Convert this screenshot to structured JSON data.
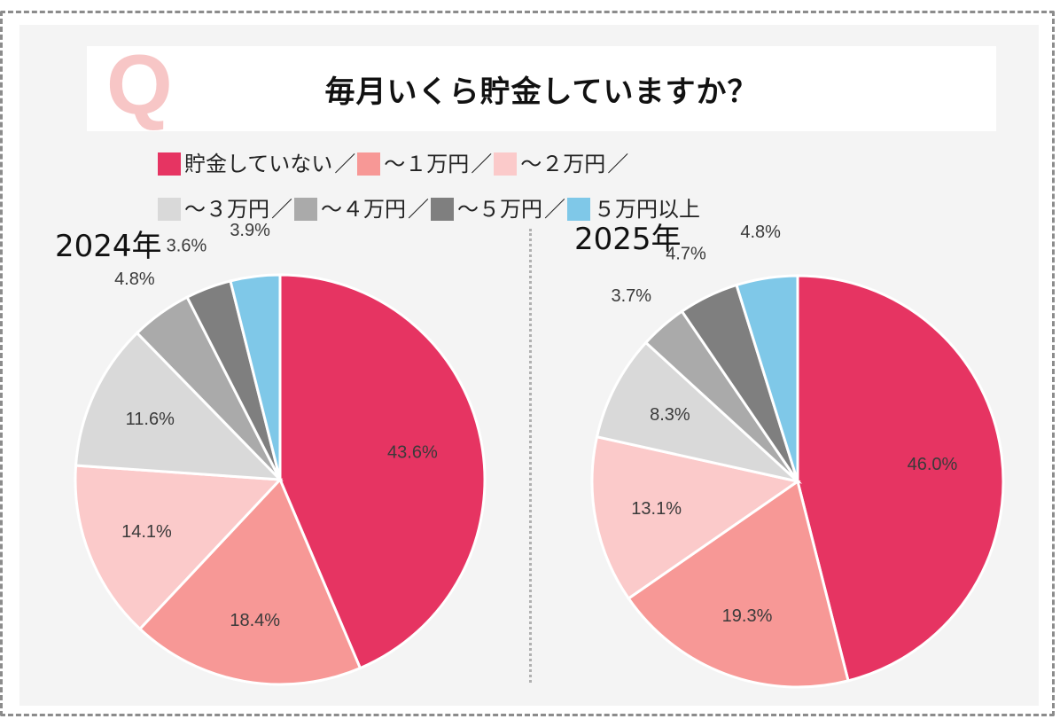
{
  "question_mark": "Q",
  "title": "毎月いくら貯金していますか？",
  "legend": {
    "separator": "／",
    "items": [
      {
        "label": "貯金していない",
        "color": "#e63462"
      },
      {
        "label": "～１万円",
        "color": "#f79896"
      },
      {
        "label": "～２万円",
        "color": "#fbcaca"
      },
      {
        "label": "～３万円",
        "color": "#d9d9d9"
      },
      {
        "label": "～４万円",
        "color": "#aaaaaa"
      },
      {
        "label": "～５万円",
        "color": "#7f7f7f"
      },
      {
        "label": "５万円以上",
        "color": "#7fc8e8"
      }
    ]
  },
  "chart_data": [
    {
      "type": "pie",
      "title": "2024年",
      "categories": [
        "貯金していない",
        "～１万円",
        "～２万円",
        "～３万円",
        "～４万円",
        "～５万円",
        "５万円以上"
      ],
      "values": [
        43.6,
        18.4,
        14.1,
        11.6,
        4.8,
        3.6,
        3.9
      ],
      "labels": [
        "43.6%",
        "18.4%",
        "14.1%",
        "11.6%",
        "4.8%",
        "3.6%",
        "3.9%"
      ],
      "start": "12 o'clock",
      "direction": "clockwise"
    },
    {
      "type": "pie",
      "title": "2025年",
      "categories": [
        "貯金していない",
        "～１万円",
        "～２万円",
        "～３万円",
        "～４万円",
        "～５万円",
        "５万円以上"
      ],
      "values": [
        46.0,
        19.3,
        13.1,
        8.3,
        3.7,
        4.7,
        4.8
      ],
      "labels": [
        "46.0%",
        "19.3%",
        "13.1%",
        "8.3%",
        "3.7%",
        "4.7%",
        "4.8%"
      ],
      "start": "12 o'clock",
      "direction": "clockwise"
    }
  ]
}
